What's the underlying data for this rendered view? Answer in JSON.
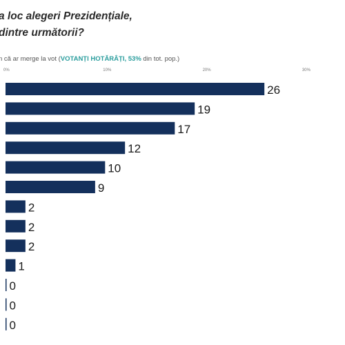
{
  "title": {
    "line1": "a loc alegeri Prezidențiale,",
    "line2": "dintre următorii?"
  },
  "subtitle": {
    "prefix": "n că ar merge la vot (",
    "highlight": "VOTANȚI HOTĂRÂȚI, 53%",
    "suffix": " din tot. pop.)"
  },
  "chart_data": {
    "type": "bar",
    "orientation": "horizontal",
    "xlim": [
      0,
      30
    ],
    "tick_labels": [
      "0%",
      "10%",
      "20%",
      "30%"
    ],
    "tick_values": [
      0,
      10,
      20,
      30
    ],
    "grid": false,
    "values": [
      26,
      19,
      17,
      12,
      10,
      9,
      2,
      2,
      2,
      1,
      0,
      0,
      0
    ],
    "color": "#14305c"
  }
}
